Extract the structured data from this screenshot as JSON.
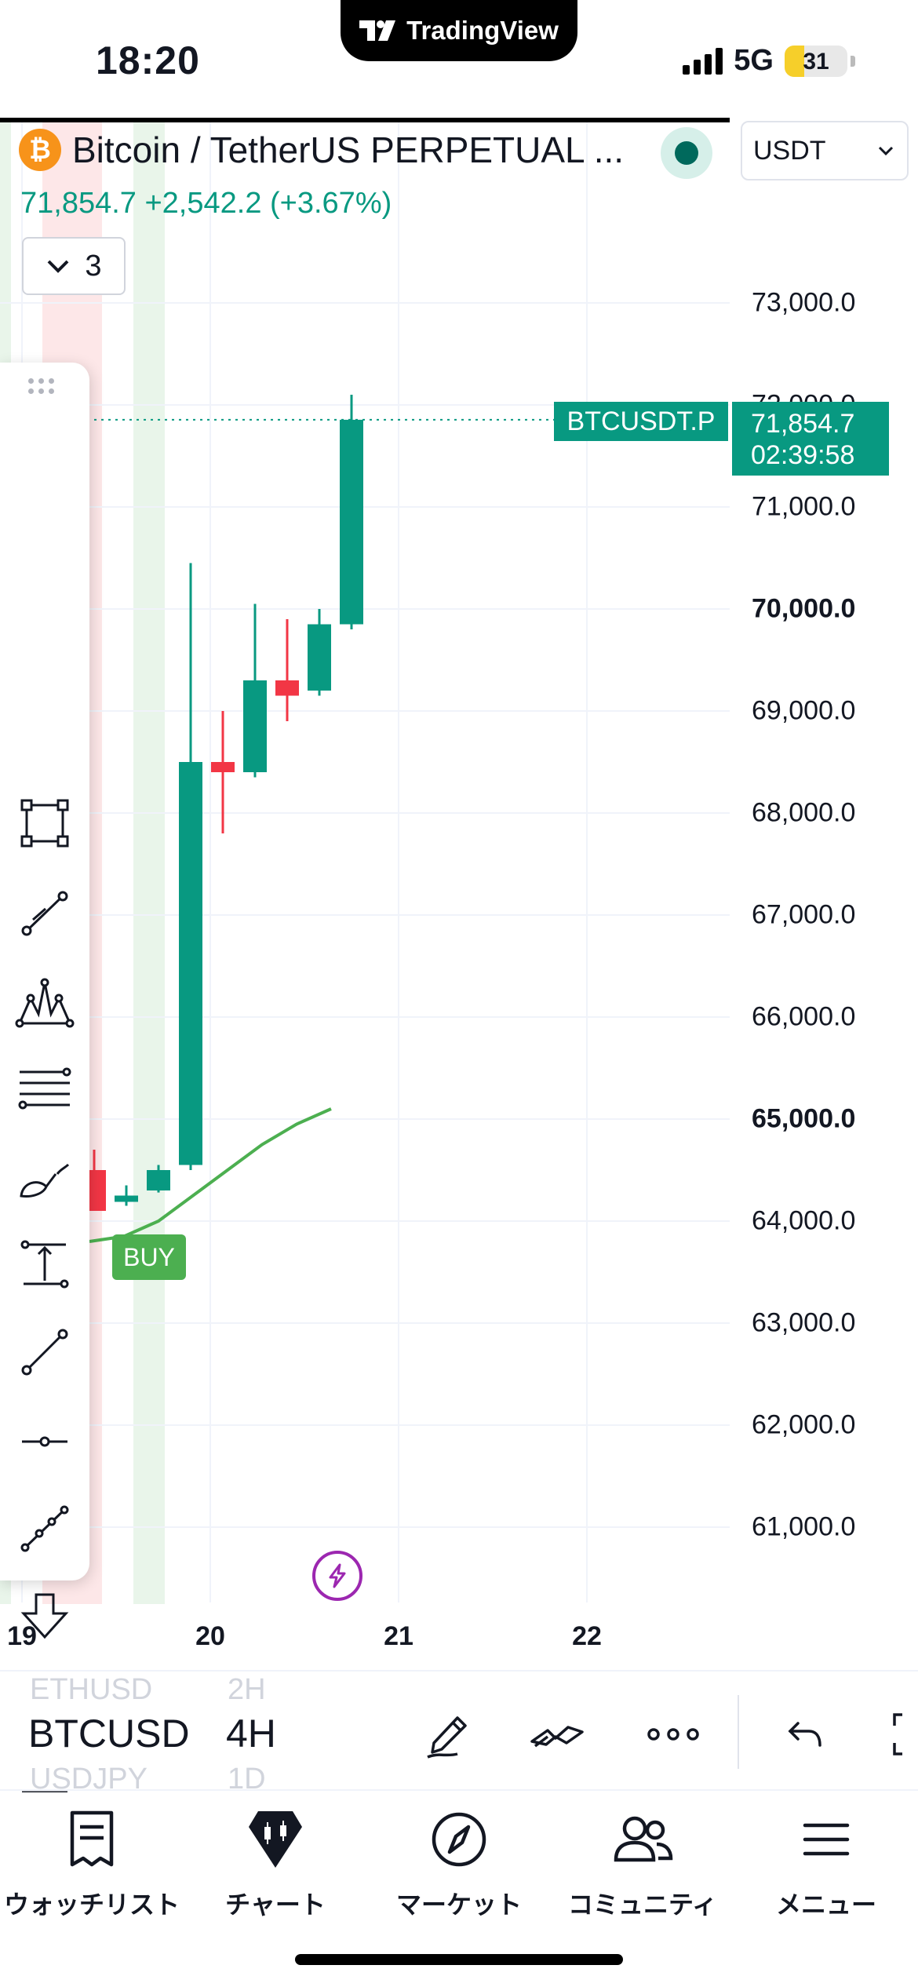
{
  "status_bar": {
    "time": "18:20",
    "app_banner": "TradingView",
    "network": "5G",
    "battery": "31",
    "battery_level": 0.31
  },
  "header": {
    "coin_glyph": "₿",
    "symbol_title": "Bitcoin / TetherUS PERPETUAL ...",
    "price_line": "71,854.7  +2,542.2 (+3.67%)",
    "currency": "USDT",
    "collapse_count": "3"
  },
  "chart": {
    "price_label": "71,854.7",
    "countdown": "02:39:58",
    "symbol_label": "BTCUSDT.P",
    "buy_label": "BUY",
    "y_axis": [
      "73,000.0",
      "72,000.0",
      "71,000.0",
      "70,000.0",
      "69,000.0",
      "68,000.0",
      "67,000.0",
      "66,000.0",
      "65,000.0",
      "64,000.0",
      "63,000.0",
      "62,000.0",
      "61,000.0"
    ],
    "x_axis": [
      "19",
      "20",
      "21",
      "22"
    ],
    "up_color": "#089981",
    "down_color": "#f23645"
  },
  "chart_data": {
    "type": "candlestick",
    "symbol": "BTCUSDT.P",
    "timeframe": "4H",
    "ylim": [
      60600,
      73600
    ],
    "x_ticks": [
      "19",
      "20",
      "21",
      "22"
    ],
    "last_price": 71854.7,
    "candles": [
      {
        "open": 64500,
        "high": 64700,
        "low": 64200,
        "close": 64100
      },
      {
        "open": 64250,
        "high": 64350,
        "low": 64150,
        "close": 64250
      },
      {
        "open": 64300,
        "high": 64550,
        "low": 64280,
        "close": 64500
      },
      {
        "open": 64550,
        "high": 70450,
        "low": 64500,
        "close": 68500
      },
      {
        "open": 68500,
        "high": 69000,
        "low": 67800,
        "close": 68400
      },
      {
        "open": 68400,
        "high": 70050,
        "low": 68350,
        "close": 69300
      },
      {
        "open": 69300,
        "high": 69900,
        "low": 68900,
        "close": 69150
      },
      {
        "open": 69200,
        "high": 70000,
        "low": 69150,
        "close": 69850
      },
      {
        "open": 69850,
        "high": 72100,
        "low": 69800,
        "close": 71854.7
      }
    ],
    "indicator_line": {
      "name": "",
      "color": "#4caf50",
      "values": [
        63800,
        63850,
        64000,
        64250,
        64500,
        64750,
        64950,
        65100
      ]
    },
    "session_bands": [
      {
        "color": "#f23645"
      },
      {
        "color": "#4caf50"
      },
      {
        "color": "#4caf50"
      }
    ]
  },
  "toolbar": {
    "tools": [
      "rectangle-icon",
      "trend-line-nodes-icon",
      "pattern-icon",
      "fib-lines-icon",
      "brush-icon",
      "measure-icon",
      "trend-line-icon",
      "horizontal-ray-icon",
      "path-icon",
      "arrow-down-icon",
      "arrow-up-icon",
      "long-position-icon",
      "forecast-icon"
    ]
  },
  "symbol_strip": {
    "prev_symbol": "ETHUSD",
    "active_symbol": "BTCUSD",
    "next_symbol": "USDJPY",
    "prev_interval": "2H",
    "active_interval": "4H",
    "next_interval": "1D"
  },
  "tabbar": {
    "items": [
      {
        "label": "ウォッチリスト",
        "icon": "watchlist-icon"
      },
      {
        "label": "チャート",
        "icon": "chart-icon"
      },
      {
        "label": "マーケット",
        "icon": "compass-icon"
      },
      {
        "label": "コミュニティ",
        "icon": "community-icon"
      },
      {
        "label": "メニュー",
        "icon": "menu-icon"
      }
    ]
  }
}
